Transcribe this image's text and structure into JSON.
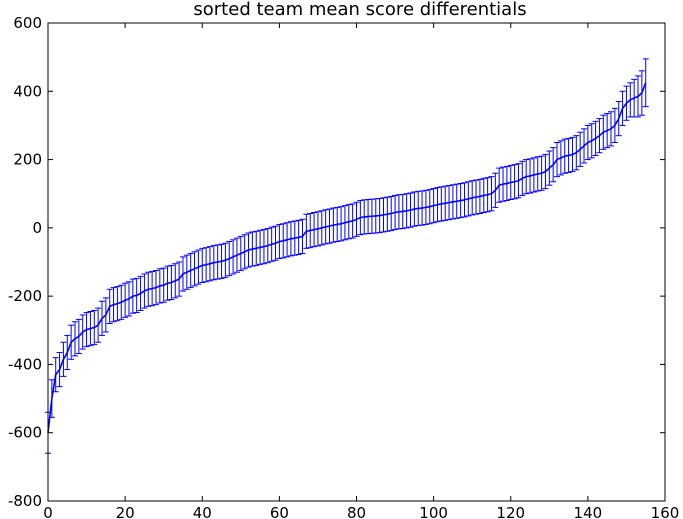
{
  "chart_data": {
    "type": "line",
    "title": "sorted team mean score differentials",
    "xlabel": "",
    "ylabel": "",
    "xlim": [
      0,
      160
    ],
    "ylim": [
      -800,
      600
    ],
    "grid": false,
    "legend": "none",
    "color": "#0000ff",
    "x_ticks": [
      0,
      20,
      40,
      60,
      80,
      100,
      120,
      140,
      160
    ],
    "y_ticks": [
      600,
      400,
      200,
      0,
      -200,
      -400,
      -600,
      -800
    ],
    "series": [
      {
        "x": [
          0,
          1,
          2,
          3,
          4,
          5,
          6,
          7,
          8,
          9,
          10,
          11,
          12,
          13,
          14,
          15,
          16,
          17,
          18,
          19,
          20,
          21,
          22,
          23,
          24,
          25,
          26,
          27,
          28,
          29,
          30,
          31,
          32,
          33,
          34,
          35,
          36,
          37,
          38,
          39,
          40,
          41,
          42,
          43,
          44,
          45,
          46,
          47,
          48,
          49,
          50,
          51,
          52,
          53,
          54,
          55,
          56,
          57,
          58,
          59,
          60,
          61,
          62,
          63,
          64,
          65,
          66,
          67,
          68,
          69,
          70,
          71,
          72,
          73,
          74,
          75,
          76,
          77,
          78,
          79,
          80,
          81,
          82,
          83,
          84,
          85,
          86,
          87,
          88,
          89,
          90,
          91,
          92,
          93,
          94,
          95,
          96,
          97,
          98,
          99,
          100,
          101,
          102,
          103,
          104,
          105,
          106,
          107,
          108,
          109,
          110,
          111,
          112,
          113,
          114,
          115,
          116,
          117,
          118,
          119,
          120,
          121,
          122,
          123,
          124,
          125,
          126,
          127,
          128,
          129,
          130,
          131,
          132,
          133,
          134,
          135,
          136,
          137,
          138,
          139,
          140,
          141,
          142,
          143,
          144,
          145,
          146,
          147,
          148,
          149,
          150,
          151,
          152,
          153,
          154,
          155
        ],
        "y": [
          -600,
          -500,
          -430,
          -415,
          -385,
          -365,
          -335,
          -325,
          -318,
          -305,
          -298,
          -295,
          -292,
          -285,
          -265,
          -255,
          -230,
          -225,
          -222,
          -218,
          -212,
          -208,
          -200,
          -198,
          -192,
          -185,
          -180,
          -178,
          -175,
          -170,
          -168,
          -162,
          -160,
          -155,
          -150,
          -135,
          -130,
          -125,
          -120,
          -115,
          -110,
          -108,
          -105,
          -102,
          -100,
          -98,
          -95,
          -90,
          -85,
          -80,
          -75,
          -70,
          -65,
          -62,
          -60,
          -57,
          -55,
          -52,
          -48,
          -45,
          -40,
          -38,
          -35,
          -32,
          -30,
          -28,
          -25,
          -10,
          -8,
          -5,
          -3,
          0,
          3,
          5,
          8,
          10,
          12,
          15,
          18,
          20,
          25,
          30,
          32,
          33,
          34,
          35,
          36,
          38,
          40,
          42,
          45,
          47,
          48,
          50,
          52,
          55,
          57,
          58,
          60,
          62,
          65,
          68,
          70,
          72,
          74,
          76,
          78,
          80,
          82,
          85,
          88,
          90,
          92,
          95,
          97,
          100,
          110,
          125,
          128,
          130,
          133,
          135,
          138,
          145,
          150,
          152,
          155,
          158,
          160,
          165,
          175,
          185,
          200,
          205,
          210,
          212,
          215,
          220,
          230,
          240,
          250,
          255,
          262,
          270,
          280,
          285,
          290,
          300,
          320,
          350,
          365,
          375,
          380,
          385,
          395,
          425
        ],
        "err": [
          60,
          55,
          50,
          50,
          50,
          50,
          50,
          50,
          50,
          50,
          50,
          50,
          50,
          50,
          50,
          50,
          50,
          50,
          50,
          50,
          50,
          50,
          50,
          50,
          50,
          50,
          50,
          50,
          50,
          50,
          50,
          50,
          50,
          50,
          50,
          50,
          50,
          50,
          50,
          50,
          50,
          50,
          50,
          50,
          50,
          50,
          50,
          50,
          50,
          50,
          50,
          50,
          50,
          50,
          50,
          50,
          50,
          50,
          50,
          50,
          50,
          50,
          50,
          50,
          50,
          50,
          50,
          50,
          50,
          50,
          50,
          50,
          50,
          50,
          50,
          50,
          50,
          50,
          50,
          50,
          50,
          50,
          50,
          50,
          50,
          50,
          50,
          50,
          50,
          50,
          50,
          50,
          50,
          50,
          50,
          50,
          50,
          50,
          50,
          50,
          50,
          50,
          50,
          50,
          50,
          50,
          50,
          50,
          50,
          50,
          50,
          50,
          50,
          50,
          50,
          50,
          50,
          50,
          50,
          50,
          50,
          50,
          50,
          50,
          50,
          50,
          50,
          50,
          50,
          50,
          50,
          50,
          50,
          50,
          50,
          50,
          50,
          50,
          50,
          50,
          50,
          50,
          50,
          50,
          50,
          50,
          50,
          50,
          50,
          50,
          50,
          50,
          55,
          60,
          65,
          70
        ]
      }
    ]
  }
}
